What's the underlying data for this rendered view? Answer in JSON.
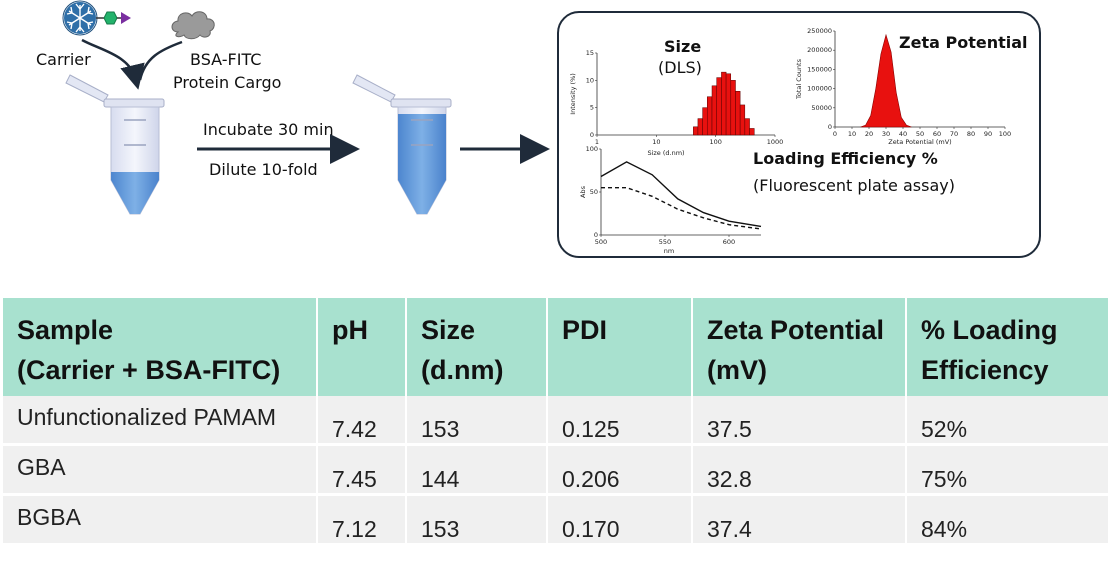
{
  "workflow": {
    "carrier_label": "Carrier",
    "cargo_label_line1": "BSA-FITC",
    "cargo_label_line2": "Protein Cargo",
    "step1": "Incubate 30 min",
    "step2": "Dilute 10-fold"
  },
  "results": {
    "size_title": "Size",
    "size_subtitle": "(DLS)",
    "zeta_title": "Zeta Potential",
    "loading_title": "Loading Efficiency %",
    "loading_subtitle": "(Fluorescent plate assay)"
  },
  "chart_data": [
    {
      "type": "bar",
      "ylabel": "Intensity (%)",
      "xlabel": "Size (d.nm)",
      "x_scale": "log",
      "xlim": [
        1,
        1000
      ],
      "ylim": [
        0,
        15
      ],
      "x_ticks": [
        "1",
        "10",
        "100",
        "1000"
      ],
      "y_ticks": [
        "0",
        "5",
        "10",
        "15"
      ],
      "x": [
        46,
        55,
        66,
        79,
        95,
        114,
        137,
        164,
        197,
        236,
        283,
        340,
        408
      ],
      "values": [
        1.5,
        3,
        5,
        7,
        9,
        10.5,
        11.5,
        11.2,
        10,
        8,
        5.5,
        3,
        1.2
      ]
    },
    {
      "type": "area",
      "ylabel": "Total Counts",
      "xlabel": "Zeta Potential (mV)",
      "xlim": [
        0,
        100
      ],
      "ylim": [
        0,
        250000
      ],
      "x_ticks": [
        "0",
        "10",
        "20",
        "30",
        "40",
        "50",
        "60",
        "70",
        "80",
        "90",
        "100"
      ],
      "y_ticks": [
        "0",
        "50000",
        "100000",
        "150000",
        "200000",
        "250000"
      ],
      "x": [
        15,
        18,
        21,
        24,
        27,
        30,
        33,
        36,
        39,
        42,
        45
      ],
      "values": [
        0,
        5000,
        30000,
        100000,
        190000,
        240000,
        195000,
        90000,
        25000,
        5000,
        0
      ]
    },
    {
      "type": "line",
      "ylabel": "Abs",
      "xlabel": "nm",
      "xlim": [
        500,
        625
      ],
      "ylim": [
        0,
        100
      ],
      "x_ticks": [
        "500",
        "550",
        "600"
      ],
      "y_ticks": [
        "0",
        "50",
        "100"
      ],
      "series": [
        {
          "style": "solid",
          "x": [
            500,
            520,
            540,
            560,
            580,
            600,
            625
          ],
          "values": [
            68,
            85,
            70,
            42,
            26,
            16,
            10
          ]
        },
        {
          "style": "dashed",
          "x": [
            500,
            520,
            540,
            560,
            580,
            600,
            625
          ],
          "values": [
            55,
            55,
            45,
            30,
            20,
            12,
            7
          ]
        }
      ]
    }
  ],
  "table": {
    "headers": [
      [
        "Sample",
        "(Carrier + BSA-FITC)"
      ],
      [
        "pH"
      ],
      [
        "Size",
        "(d.nm)"
      ],
      [
        "PDI"
      ],
      [
        "Zeta Potential",
        "(mV)"
      ],
      [
        "% Loading",
        "Efficiency"
      ]
    ],
    "rows": [
      [
        "Unfunctionalized PAMAM",
        "7.42",
        "153",
        "0.125",
        "37.5",
        "52%"
      ],
      [
        "GBA",
        "7.45",
        "144",
        "0.206",
        "32.8",
        "75%"
      ],
      [
        "BGBA",
        "7.12",
        "153",
        "0.170",
        "37.4",
        "84%"
      ]
    ]
  },
  "colors": {
    "header_bg": "#a8e1cf",
    "row_bg": "#f0f0f0",
    "tube_liquid": "#5b93d4",
    "bar_red": "#e8110f",
    "arrow": "#1f2b3a"
  }
}
